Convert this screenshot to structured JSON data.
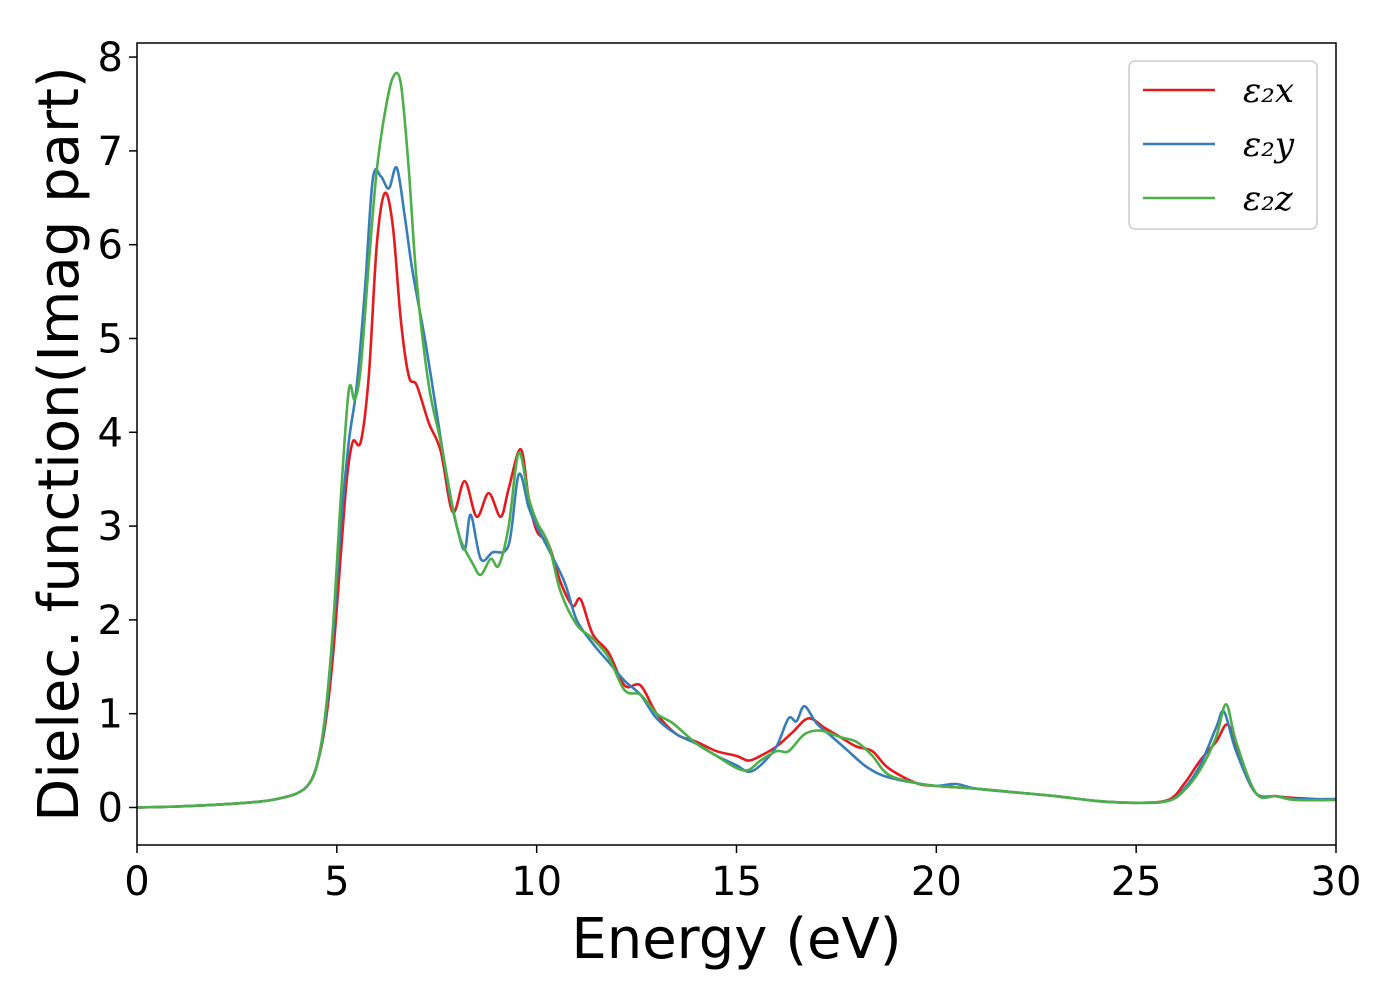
{
  "chart_data": {
    "type": "line",
    "title": "",
    "xlabel": "Energy (eV)",
    "ylabel": "Dielec. function(Imag part)",
    "xlim": [
      0,
      30
    ],
    "ylim": [
      -0.4,
      8.15
    ],
    "xticks": [
      0,
      5,
      10,
      15,
      20,
      25,
      30
    ],
    "yticks": [
      0,
      1,
      2,
      3,
      4,
      5,
      6,
      7,
      8
    ],
    "grid": false,
    "legend_position": "top-right",
    "series": [
      {
        "name": "ε₂x",
        "color": "#e41a1c",
        "points": [
          [
            0,
            0.0
          ],
          [
            1,
            0.01
          ],
          [
            2,
            0.03
          ],
          [
            3,
            0.06
          ],
          [
            3.5,
            0.09
          ],
          [
            4,
            0.15
          ],
          [
            4.3,
            0.25
          ],
          [
            4.5,
            0.45
          ],
          [
            4.7,
            0.85
          ],
          [
            4.9,
            1.6
          ],
          [
            5.1,
            2.7
          ],
          [
            5.25,
            3.5
          ],
          [
            5.4,
            3.9
          ],
          [
            5.6,
            3.9
          ],
          [
            5.8,
            4.6
          ],
          [
            6.0,
            6.0
          ],
          [
            6.2,
            6.55
          ],
          [
            6.4,
            6.2
          ],
          [
            6.6,
            5.2
          ],
          [
            6.8,
            4.6
          ],
          [
            7.0,
            4.5
          ],
          [
            7.3,
            4.1
          ],
          [
            7.6,
            3.8
          ],
          [
            7.9,
            3.15
          ],
          [
            8.2,
            3.48
          ],
          [
            8.5,
            3.1
          ],
          [
            8.8,
            3.35
          ],
          [
            9.1,
            3.1
          ],
          [
            9.3,
            3.4
          ],
          [
            9.6,
            3.82
          ],
          [
            9.8,
            3.3
          ],
          [
            10.0,
            2.95
          ],
          [
            10.3,
            2.8
          ],
          [
            10.6,
            2.4
          ],
          [
            10.9,
            2.15
          ],
          [
            11.1,
            2.22
          ],
          [
            11.4,
            1.85
          ],
          [
            11.8,
            1.65
          ],
          [
            12.2,
            1.3
          ],
          [
            12.6,
            1.3
          ],
          [
            13.0,
            1.0
          ],
          [
            13.5,
            0.78
          ],
          [
            14.0,
            0.7
          ],
          [
            14.5,
            0.6
          ],
          [
            15.0,
            0.55
          ],
          [
            15.3,
            0.5
          ],
          [
            15.6,
            0.55
          ],
          [
            16.0,
            0.65
          ],
          [
            16.4,
            0.8
          ],
          [
            16.8,
            0.95
          ],
          [
            17.2,
            0.85
          ],
          [
            17.6,
            0.75
          ],
          [
            18.0,
            0.65
          ],
          [
            18.4,
            0.6
          ],
          [
            18.8,
            0.42
          ],
          [
            19.5,
            0.26
          ],
          [
            20,
            0.23
          ],
          [
            21,
            0.2
          ],
          [
            22,
            0.16
          ],
          [
            23,
            0.12
          ],
          [
            24,
            0.07
          ],
          [
            25,
            0.05
          ],
          [
            25.8,
            0.08
          ],
          [
            26.2,
            0.25
          ],
          [
            26.6,
            0.5
          ],
          [
            27.0,
            0.7
          ],
          [
            27.3,
            0.88
          ],
          [
            27.6,
            0.5
          ],
          [
            28.0,
            0.15
          ],
          [
            28.5,
            0.12
          ],
          [
            29,
            0.1
          ],
          [
            30,
            0.08
          ]
        ]
      },
      {
        "name": "ε₂y",
        "color": "#377eb8",
        "points": [
          [
            0,
            0.0
          ],
          [
            1,
            0.01
          ],
          [
            2,
            0.03
          ],
          [
            3,
            0.06
          ],
          [
            3.5,
            0.09
          ],
          [
            4,
            0.15
          ],
          [
            4.3,
            0.25
          ],
          [
            4.5,
            0.45
          ],
          [
            4.7,
            0.9
          ],
          [
            4.9,
            1.8
          ],
          [
            5.1,
            3.0
          ],
          [
            5.3,
            3.9
          ],
          [
            5.5,
            4.5
          ],
          [
            5.7,
            5.5
          ],
          [
            5.9,
            6.7
          ],
          [
            6.1,
            6.73
          ],
          [
            6.3,
            6.6
          ],
          [
            6.5,
            6.82
          ],
          [
            6.7,
            6.3
          ],
          [
            6.9,
            5.7
          ],
          [
            7.2,
            5.0
          ],
          [
            7.5,
            4.2
          ],
          [
            7.8,
            3.4
          ],
          [
            8.0,
            3.0
          ],
          [
            8.2,
            2.75
          ],
          [
            8.35,
            3.12
          ],
          [
            8.6,
            2.65
          ],
          [
            8.9,
            2.72
          ],
          [
            9.3,
            2.8
          ],
          [
            9.55,
            3.55
          ],
          [
            9.8,
            3.2
          ],
          [
            10.0,
            3.0
          ],
          [
            10.3,
            2.75
          ],
          [
            10.7,
            2.4
          ],
          [
            11.0,
            2.0
          ],
          [
            11.4,
            1.75
          ],
          [
            11.8,
            1.55
          ],
          [
            12.2,
            1.35
          ],
          [
            12.6,
            1.2
          ],
          [
            13.0,
            0.95
          ],
          [
            13.5,
            0.78
          ],
          [
            14.0,
            0.68
          ],
          [
            14.5,
            0.55
          ],
          [
            15.0,
            0.45
          ],
          [
            15.3,
            0.38
          ],
          [
            15.6,
            0.45
          ],
          [
            16.0,
            0.65
          ],
          [
            16.3,
            0.95
          ],
          [
            16.5,
            0.92
          ],
          [
            16.7,
            1.08
          ],
          [
            17.0,
            0.9
          ],
          [
            17.4,
            0.75
          ],
          [
            17.8,
            0.6
          ],
          [
            18.2,
            0.45
          ],
          [
            18.6,
            0.35
          ],
          [
            19.0,
            0.3
          ],
          [
            19.5,
            0.26
          ],
          [
            20,
            0.23
          ],
          [
            20.5,
            0.25
          ],
          [
            21,
            0.2
          ],
          [
            22,
            0.16
          ],
          [
            23,
            0.12
          ],
          [
            24,
            0.07
          ],
          [
            25,
            0.05
          ],
          [
            25.8,
            0.07
          ],
          [
            26.2,
            0.2
          ],
          [
            26.6,
            0.45
          ],
          [
            27.0,
            0.85
          ],
          [
            27.2,
            1.02
          ],
          [
            27.5,
            0.6
          ],
          [
            28.0,
            0.15
          ],
          [
            28.5,
            0.12
          ],
          [
            29,
            0.09
          ],
          [
            30,
            0.09
          ]
        ]
      },
      {
        "name": "ε₂z",
        "color": "#4daf4a",
        "points": [
          [
            0,
            0.0
          ],
          [
            1,
            0.01
          ],
          [
            2,
            0.03
          ],
          [
            3,
            0.06
          ],
          [
            3.5,
            0.09
          ],
          [
            4,
            0.15
          ],
          [
            4.3,
            0.25
          ],
          [
            4.5,
            0.45
          ],
          [
            4.7,
            0.95
          ],
          [
            4.9,
            1.9
          ],
          [
            5.1,
            3.3
          ],
          [
            5.3,
            4.45
          ],
          [
            5.45,
            4.35
          ],
          [
            5.6,
            4.7
          ],
          [
            5.8,
            5.8
          ],
          [
            6.0,
            6.8
          ],
          [
            6.2,
            7.4
          ],
          [
            6.4,
            7.78
          ],
          [
            6.6,
            7.72
          ],
          [
            6.8,
            6.8
          ],
          [
            7.0,
            5.6
          ],
          [
            7.3,
            4.5
          ],
          [
            7.6,
            3.9
          ],
          [
            7.9,
            3.2
          ],
          [
            8.1,
            2.85
          ],
          [
            8.4,
            2.6
          ],
          [
            8.6,
            2.48
          ],
          [
            8.85,
            2.65
          ],
          [
            9.05,
            2.58
          ],
          [
            9.3,
            3.0
          ],
          [
            9.55,
            3.78
          ],
          [
            9.8,
            3.3
          ],
          [
            10.0,
            3.05
          ],
          [
            10.3,
            2.8
          ],
          [
            10.6,
            2.3
          ],
          [
            11.0,
            1.95
          ],
          [
            11.4,
            1.8
          ],
          [
            11.8,
            1.6
          ],
          [
            12.2,
            1.25
          ],
          [
            12.6,
            1.2
          ],
          [
            13.0,
            1.0
          ],
          [
            13.4,
            0.9
          ],
          [
            14.0,
            0.68
          ],
          [
            14.5,
            0.55
          ],
          [
            15.0,
            0.42
          ],
          [
            15.3,
            0.4
          ],
          [
            15.6,
            0.5
          ],
          [
            16.0,
            0.6
          ],
          [
            16.3,
            0.6
          ],
          [
            16.7,
            0.78
          ],
          [
            17.1,
            0.82
          ],
          [
            17.6,
            0.75
          ],
          [
            18.0,
            0.7
          ],
          [
            18.4,
            0.55
          ],
          [
            18.8,
            0.35
          ],
          [
            19.5,
            0.26
          ],
          [
            20,
            0.23
          ],
          [
            21,
            0.2
          ],
          [
            22,
            0.16
          ],
          [
            23,
            0.12
          ],
          [
            24,
            0.07
          ],
          [
            25,
            0.05
          ],
          [
            25.8,
            0.07
          ],
          [
            26.2,
            0.18
          ],
          [
            26.6,
            0.4
          ],
          [
            27.0,
            0.75
          ],
          [
            27.25,
            1.1
          ],
          [
            27.5,
            0.7
          ],
          [
            28.0,
            0.15
          ],
          [
            28.5,
            0.12
          ],
          [
            29,
            0.08
          ],
          [
            30,
            0.08
          ]
        ]
      }
    ]
  }
}
